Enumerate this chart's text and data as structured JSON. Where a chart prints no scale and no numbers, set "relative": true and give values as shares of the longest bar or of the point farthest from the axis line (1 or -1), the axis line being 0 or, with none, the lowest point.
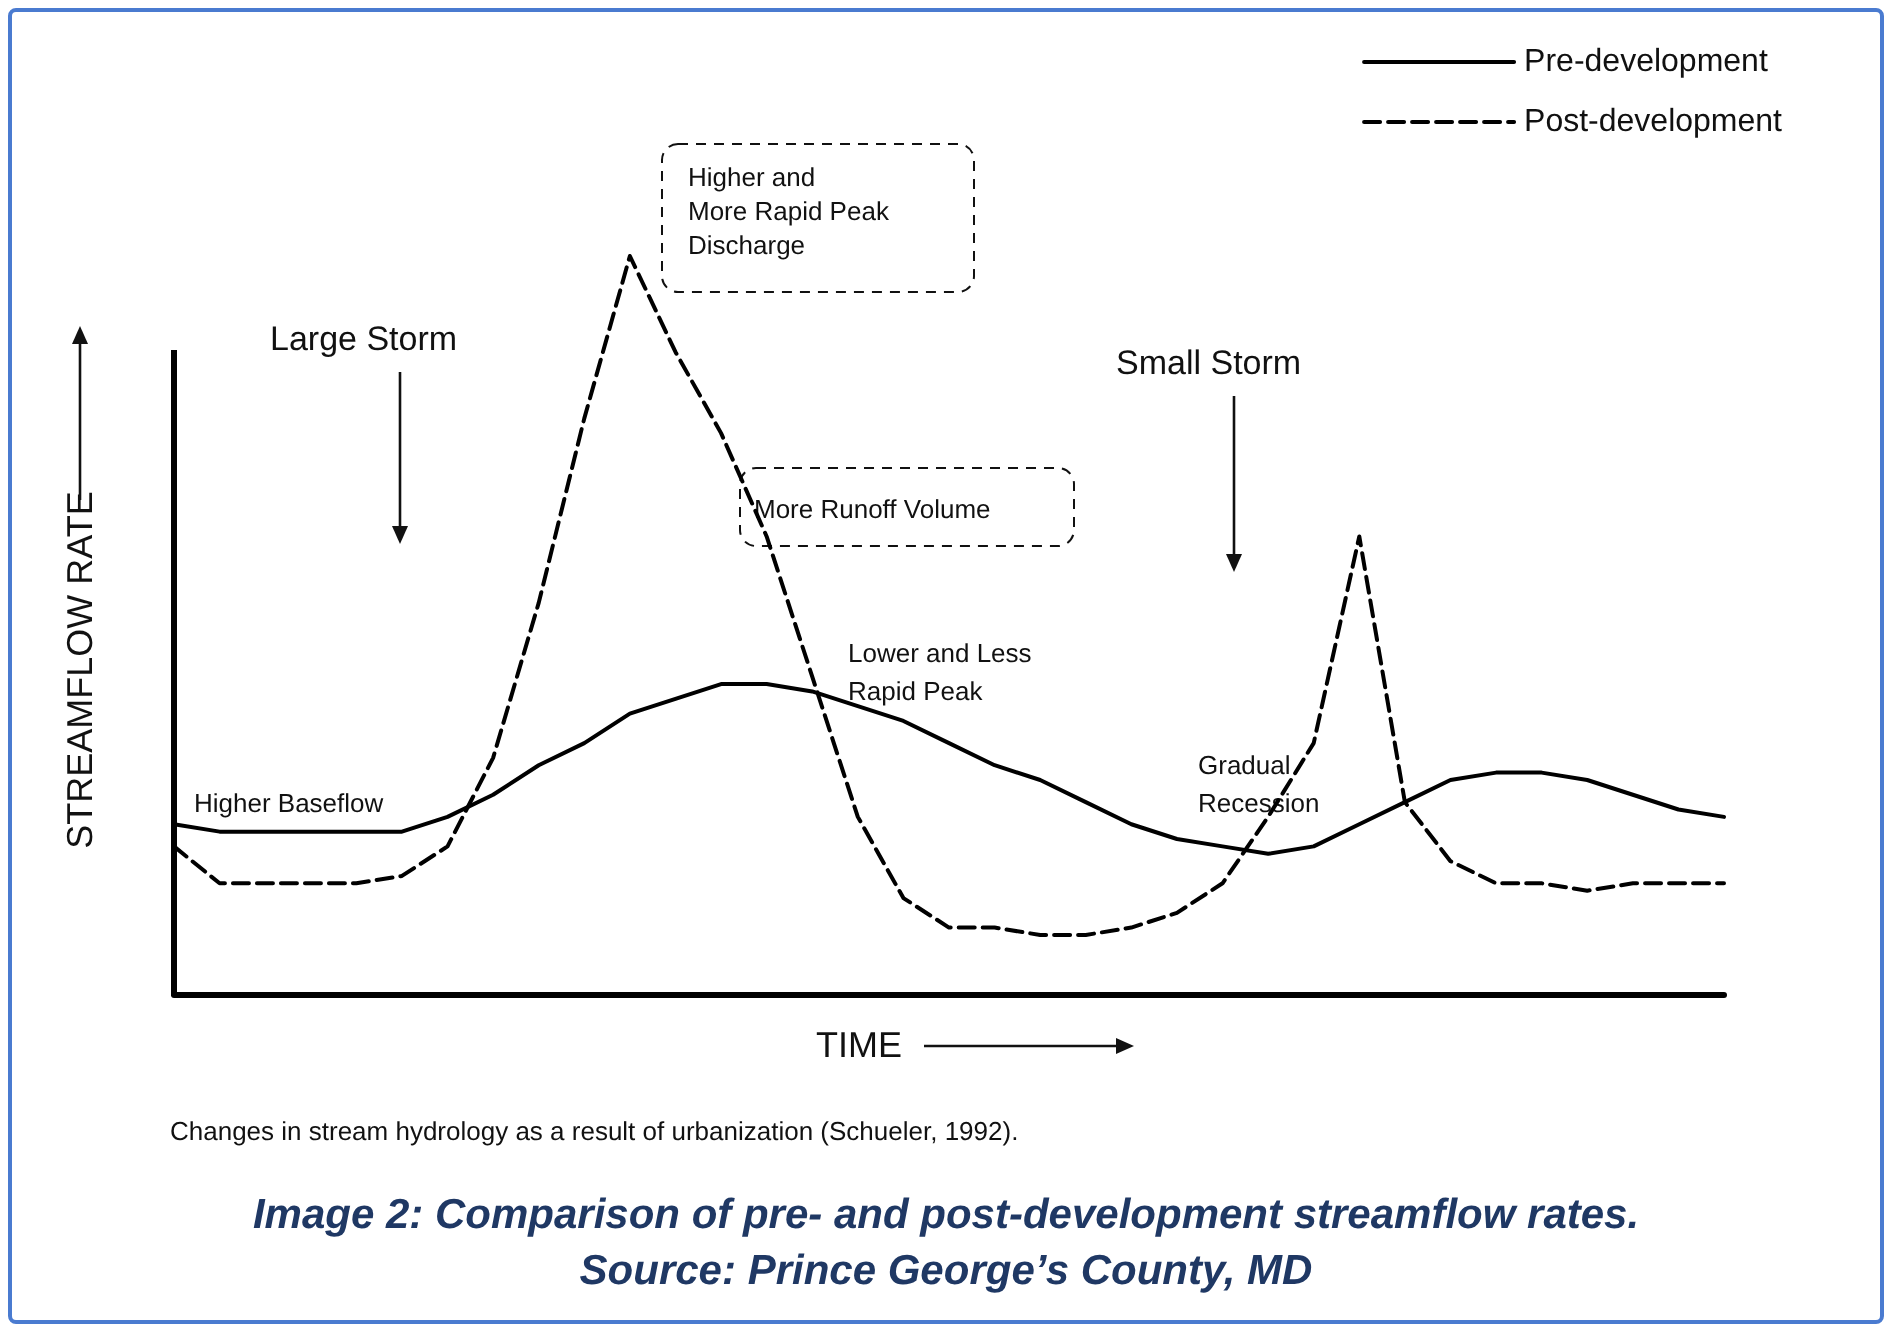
{
  "chart_data": {
    "type": "line",
    "relative": true,
    "xlabel": "TIME",
    "ylabel": "STREAMFLOW RATE",
    "legend": "top right",
    "marker": "none",
    "grid": false,
    "categories": [
      null,
      null,
      null,
      null,
      null,
      null,
      null,
      null,
      null,
      null,
      null,
      null,
      null,
      null,
      null,
      null,
      null,
      null,
      null,
      null,
      null,
      null,
      null,
      null,
      null,
      null,
      null,
      null,
      null,
      null,
      null,
      null,
      null,
      null,
      null
    ],
    "series": [
      {
        "name": "Pre-development",
        "color": "#000000",
        "line_style": "solid",
        "values": [
          0.23,
          0.22,
          0.22,
          0.22,
          0.22,
          0.22,
          0.24,
          0.27,
          0.31,
          0.34,
          0.38,
          0.4,
          0.42,
          0.42,
          0.41,
          0.39,
          0.37,
          0.34,
          0.31,
          0.29,
          0.26,
          0.23,
          0.21,
          0.2,
          0.19,
          0.2,
          0.23,
          0.26,
          0.29,
          0.3,
          0.3,
          0.29,
          0.27,
          0.25,
          0.24
        ]
      },
      {
        "name": "Post-development",
        "color": "#000000",
        "line_style": "dashed",
        "values": [
          0.2,
          0.15,
          0.15,
          0.15,
          0.15,
          0.16,
          0.2,
          0.32,
          0.53,
          0.78,
          1,
          0.87,
          0.76,
          0.62,
          0.43,
          0.24,
          0.13,
          0.09,
          0.09,
          0.08,
          0.08,
          0.09,
          0.11,
          0.15,
          0.24,
          0.34,
          0.62,
          0.26,
          0.18,
          0.15,
          0.15,
          0.14,
          0.15,
          0.15,
          0.15
        ]
      }
    ],
    "annotations": [
      "Higher Baseflow",
      "Large Storm",
      "Higher and\nMore Rapid Peak\nDischarge",
      "More Runoff Volume",
      "Lower and Less\nRapid Peak",
      "Gradual\nRecession",
      "Small Storm",
      "Changes in stream hydrology as a result of urbanization (Schueler, 1992).",
      "Image 2: Comparison of pre- and post-development streamflow rates.",
      "Source: Prince George’s County, MD"
    ]
  }
}
